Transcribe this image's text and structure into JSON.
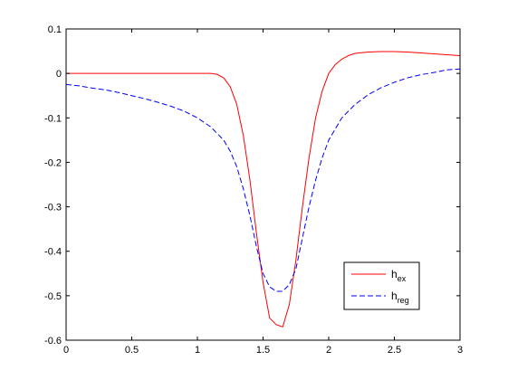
{
  "chart_data": {
    "type": "line",
    "title": "",
    "xlabel": "",
    "ylabel": "",
    "xlim": [
      0,
      3
    ],
    "ylim": [
      -0.6,
      0.1
    ],
    "x_ticks": [
      0,
      0.5,
      1,
      1.5,
      2,
      2.5,
      3
    ],
    "x_tick_labels": [
      "0",
      "0.5",
      "1",
      "1.5",
      "2",
      "2.5",
      "3"
    ],
    "y_ticks": [
      0.1,
      0,
      -0.1,
      -0.2,
      -0.3,
      -0.4,
      -0.5,
      -0.6
    ],
    "y_tick_labels": [
      "0.1",
      "0",
      "-0.1",
      "-0.2",
      "-0.3",
      "-0.4",
      "-0.5",
      "-0.6"
    ],
    "grid": false,
    "legend_position": "bottom-right",
    "series": [
      {
        "name": "h_ex",
        "label_main": "h",
        "label_sub": "ex",
        "color": "#ff0000",
        "dash": "solid",
        "x": [
          0,
          0.5,
          1.0,
          1.1,
          1.15,
          1.2,
          1.25,
          1.3,
          1.35,
          1.4,
          1.45,
          1.5,
          1.55,
          1.6,
          1.65,
          1.7,
          1.75,
          1.8,
          1.85,
          1.9,
          1.95,
          2.0,
          2.05,
          2.1,
          2.15,
          2.2,
          2.3,
          2.4,
          2.5,
          2.6,
          2.7,
          2.8,
          2.9,
          3.0
        ],
        "y": [
          0,
          0,
          0,
          0,
          -0.002,
          -0.01,
          -0.03,
          -0.07,
          -0.14,
          -0.24,
          -0.36,
          -0.47,
          -0.55,
          -0.565,
          -0.57,
          -0.52,
          -0.42,
          -0.3,
          -0.19,
          -0.1,
          -0.04,
          0.0,
          0.02,
          0.032,
          0.04,
          0.045,
          0.048,
          0.049,
          0.049,
          0.048,
          0.046,
          0.044,
          0.042,
          0.04
        ]
      },
      {
        "name": "h_reg",
        "label_main": "h",
        "label_sub": "reg",
        "color": "#0000ff",
        "dash": "dashed",
        "x": [
          0,
          0.1,
          0.2,
          0.3,
          0.4,
          0.5,
          0.6,
          0.7,
          0.8,
          0.9,
          1.0,
          1.1,
          1.2,
          1.25,
          1.3,
          1.35,
          1.4,
          1.45,
          1.5,
          1.55,
          1.6,
          1.65,
          1.7,
          1.75,
          1.8,
          1.85,
          1.9,
          1.95,
          2.0,
          2.1,
          2.2,
          2.3,
          2.4,
          2.5,
          2.6,
          2.7,
          2.8,
          2.9,
          3.0
        ],
        "y": [
          -0.025,
          -0.028,
          -0.033,
          -0.037,
          -0.043,
          -0.05,
          -0.057,
          -0.065,
          -0.074,
          -0.085,
          -0.1,
          -0.12,
          -0.15,
          -0.175,
          -0.21,
          -0.26,
          -0.32,
          -0.39,
          -0.45,
          -0.48,
          -0.49,
          -0.49,
          -0.475,
          -0.44,
          -0.37,
          -0.3,
          -0.24,
          -0.19,
          -0.15,
          -0.1,
          -0.07,
          -0.048,
          -0.032,
          -0.02,
          -0.01,
          -0.003,
          0.002,
          0.008,
          0.01
        ]
      }
    ]
  }
}
